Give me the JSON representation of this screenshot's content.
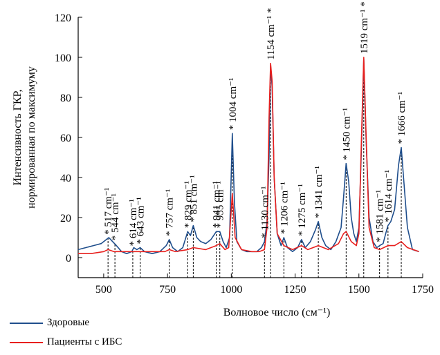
{
  "chart_data": {
    "type": "line",
    "xlabel": "Волновое число (см⁻¹)",
    "ylabel_line1": "Интенсивность ГКР,",
    "ylabel_line2": "нормированная по максимуму",
    "xlim": [
      400,
      1750
    ],
    "ylim": [
      -10,
      120
    ],
    "xticks": [
      500,
      750,
      1000,
      1250,
      1500,
      1750
    ],
    "yticks": [
      0,
      20,
      40,
      60,
      80,
      100,
      120
    ],
    "grid": false,
    "legend_position": "bottom-left",
    "colors": {
      "healthy": "#1f4e8c",
      "patients": "#e8201e"
    },
    "series": [
      {
        "name": "Здоровые",
        "color": "#1f4e8c",
        "x": [
          400,
          430,
          460,
          490,
          510,
          520,
          535,
          550,
          570,
          590,
          610,
          618,
          630,
          643,
          660,
          690,
          720,
          745,
          757,
          770,
          790,
          810,
          829,
          840,
          851,
          865,
          880,
          900,
          920,
          941,
          955,
          968,
          980,
          993,
          1004,
          1012,
          1022,
          1040,
          1060,
          1080,
          1100,
          1118,
          1130,
          1140,
          1148,
          1154,
          1160,
          1168,
          1180,
          1195,
          1206,
          1220,
          1240,
          1260,
          1275,
          1290,
          1310,
          1330,
          1341,
          1355,
          1370,
          1390,
          1410,
          1430,
          1440,
          1450,
          1460,
          1470,
          1480,
          1490,
          1500,
          1510,
          1519,
          1528,
          1540,
          1555,
          1570,
          1581,
          1595,
          1605,
          1614,
          1625,
          1640,
          1655,
          1666,
          1675,
          1690,
          1710,
          1735
        ],
        "y": [
          4,
          5,
          6,
          7,
          9,
          10,
          8,
          6,
          3,
          2,
          3,
          5,
          4,
          5,
          3,
          2,
          3,
          6,
          9,
          5,
          3,
          5,
          13,
          11,
          16,
          10,
          8,
          7,
          9,
          13,
          13,
          8,
          5,
          10,
          62,
          28,
          8,
          4,
          3,
          3,
          3,
          5,
          8,
          18,
          50,
          96,
          85,
          40,
          12,
          6,
          10,
          5,
          3,
          5,
          9,
          5,
          8,
          14,
          18,
          10,
          6,
          4,
          8,
          15,
          30,
          47,
          38,
          20,
          12,
          8,
          15,
          55,
          99,
          60,
          20,
          8,
          5,
          6,
          7,
          12,
          16,
          18,
          24,
          46,
          55,
          40,
          15,
          4,
          3
        ]
      },
      {
        "name": "Пациенты с ИБС",
        "color": "#e8201e",
        "x": [
          400,
          450,
          500,
          517,
          540,
          580,
          620,
          680,
          740,
          757,
          780,
          829,
          851,
          900,
          941,
          955,
          975,
          990,
          1004,
          1015,
          1040,
          1080,
          1110,
          1130,
          1140,
          1148,
          1154,
          1160,
          1168,
          1180,
          1206,
          1240,
          1275,
          1300,
          1341,
          1380,
          1420,
          1440,
          1450,
          1470,
          1490,
          1500,
          1510,
          1519,
          1528,
          1540,
          1560,
          1581,
          1614,
          1640,
          1666,
          1690,
          1735
        ],
        "y": [
          2,
          2,
          3,
          4,
          3,
          3,
          3,
          3,
          3,
          4,
          3,
          4,
          5,
          4,
          6,
          7,
          4,
          5,
          32,
          10,
          4,
          3,
          3,
          4,
          15,
          70,
          97,
          88,
          40,
          12,
          6,
          4,
          6,
          4,
          6,
          4,
          7,
          12,
          13,
          8,
          6,
          12,
          60,
          100,
          62,
          15,
          5,
          4,
          6,
          6,
          8,
          5,
          3
        ]
      }
    ],
    "peaks": [
      {
        "x": 517,
        "label": "* 517 cm⁻¹"
      },
      {
        "x": 544,
        "label": "* 544 cm⁻¹"
      },
      {
        "x": 614,
        "label": "* 614 cm⁻¹"
      },
      {
        "x": 643,
        "label": "* 643 cm⁻¹"
      },
      {
        "x": 757,
        "label": "* 757 cm⁻¹"
      },
      {
        "x": 829,
        "label": "* 829 cm⁻¹"
      },
      {
        "x": 851,
        "label": "* 851 cm⁻¹"
      },
      {
        "x": 941,
        "label": "* 941 cm⁻¹"
      },
      {
        "x": 955,
        "label": "* 955 cm⁻¹"
      },
      {
        "x": 1004,
        "label": "* 1004 cm⁻¹"
      },
      {
        "x": 1130,
        "label": "* 1130 cm⁻¹"
      },
      {
        "x": 1154,
        "label": "1154 cm⁻¹ *"
      },
      {
        "x": 1206,
        "label": "* 1206 cm⁻¹"
      },
      {
        "x": 1275,
        "label": "* 1275 cm⁻¹"
      },
      {
        "x": 1341,
        "label": "* 1341 cm⁻¹"
      },
      {
        "x": 1450,
        "label": "* 1450 cm⁻¹"
      },
      {
        "x": 1519,
        "label": "1519 cm⁻¹ *"
      },
      {
        "x": 1581,
        "label": "* 1581 cm⁻¹"
      },
      {
        "x": 1614,
        "label": "* 1614 cm⁻¹"
      },
      {
        "x": 1666,
        "label": "* 1666 cm⁻¹"
      }
    ]
  }
}
